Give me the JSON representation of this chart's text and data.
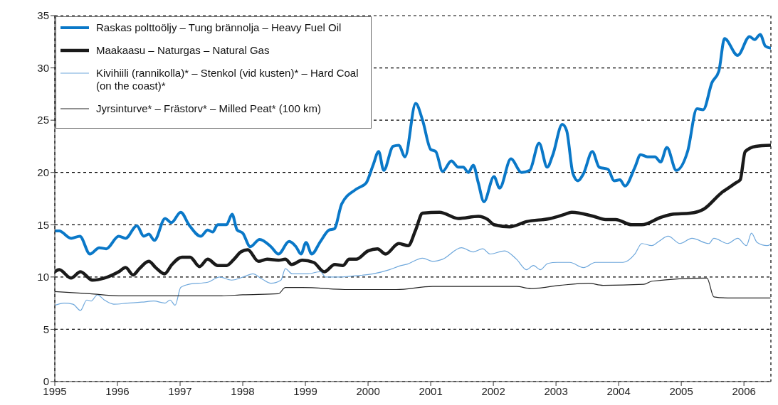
{
  "chart_data": {
    "type": "line",
    "xlim": [
      1995,
      2006.43
    ],
    "xticks": [
      1995,
      1996,
      1997,
      1998,
      1999,
      2000,
      2001,
      2002,
      2003,
      2004,
      2005,
      2006
    ],
    "ylim": [
      0,
      35
    ],
    "yticks": [
      0,
      5,
      10,
      15,
      20,
      25,
      30,
      35
    ],
    "grid": true,
    "legend": "top left",
    "line_style": "solid",
    "marker": "none",
    "series": [
      {
        "name": "Raskas polttoöljy – Tung brännolja – Heavy Fuel Oil",
        "color": "#0a78c8",
        "x": [
          1995.0,
          1995.07,
          1995.26,
          1995.4,
          1995.56,
          1995.71,
          1995.82,
          1996.02,
          1996.13,
          1996.31,
          1996.42,
          1996.5,
          1996.59,
          1996.76,
          1996.86,
          1997.01,
          1997.14,
          1997.33,
          1997.44,
          1997.52,
          1997.6,
          1997.74,
          1997.83,
          1997.91,
          1998.0,
          1998.12,
          1998.27,
          1998.45,
          1998.57,
          1998.74,
          1998.85,
          1998.93,
          1999.01,
          1999.1,
          1999.24,
          1999.38,
          1999.46,
          1999.58,
          1999.81,
          1999.97,
          2000.08,
          2000.17,
          2000.25,
          2000.4,
          2000.49,
          2000.59,
          2000.76,
          2000.87,
          2001.0,
          2001.08,
          2001.19,
          2001.33,
          2001.44,
          2001.52,
          2001.6,
          2001.68,
          2001.76,
          2001.85,
          2002.01,
          2002.1,
          2002.28,
          2002.45,
          2002.58,
          2002.73,
          2002.86,
          2002.95,
          2003.1,
          2003.17,
          2003.27,
          2003.35,
          2003.44,
          2003.58,
          2003.69,
          2003.83,
          2003.93,
          2004.02,
          2004.1,
          2004.26,
          2004.35,
          2004.46,
          2004.58,
          2004.67,
          2004.77,
          2004.92,
          2005.1,
          2005.25,
          2005.35,
          2005.49,
          2005.6,
          2005.69,
          2005.9,
          2006.09,
          2006.17,
          2006.26,
          2006.34,
          2006.42
        ],
        "values": [
          14.4,
          14.4,
          13.7,
          13.9,
          12.2,
          12.8,
          12.7,
          13.9,
          13.7,
          14.9,
          13.9,
          14.1,
          13.5,
          15.6,
          15.2,
          16.2,
          15.0,
          13.9,
          14.5,
          14.3,
          15.0,
          15.0,
          16.0,
          14.5,
          14.2,
          12.9,
          13.6,
          12.9,
          12.2,
          13.4,
          12.9,
          12.2,
          13.3,
          12.2,
          13.4,
          14.5,
          14.6,
          17.0,
          18.4,
          19.0,
          20.7,
          22.0,
          20.2,
          22.5,
          22.6,
          21.5,
          26.6,
          25.0,
          22.2,
          22.0,
          20.1,
          21.1,
          20.5,
          20.5,
          20.0,
          20.7,
          19.0,
          17.2,
          19.6,
          18.5,
          21.3,
          20.0,
          20.2,
          22.8,
          20.5,
          21.7,
          24.6,
          24.0,
          19.9,
          19.2,
          19.9,
          22.0,
          20.5,
          20.3,
          19.2,
          19.3,
          18.7,
          20.5,
          21.7,
          21.5,
          21.5,
          21.0,
          22.4,
          20.2,
          22.0,
          26.1,
          26.0,
          28.6,
          29.7,
          32.8,
          31.2,
          33.0,
          32.7,
          33.2,
          32.1,
          31.9
        ]
      },
      {
        "name": "Maakaasu – Naturgas – Natural Gas",
        "color": "#1a1a1a",
        "x": [
          1995.0,
          1995.07,
          1995.26,
          1995.41,
          1995.6,
          1995.79,
          1996.02,
          1996.13,
          1996.25,
          1996.35,
          1996.5,
          1996.61,
          1996.75,
          1996.87,
          1997.03,
          1997.16,
          1997.31,
          1997.44,
          1997.6,
          1997.74,
          1997.86,
          1997.97,
          1998.08,
          1998.25,
          1998.39,
          1998.57,
          1998.68,
          1998.78,
          1998.95,
          1999.13,
          1999.3,
          1999.47,
          1999.6,
          1999.7,
          1999.81,
          2000.0,
          2000.15,
          2000.28,
          2000.49,
          2000.64,
          2000.76,
          2000.87,
          2001.14,
          2001.44,
          2001.76,
          2001.91,
          2002.01,
          2002.26,
          2002.53,
          2002.91,
          2003.14,
          2003.25,
          2003.6,
          2003.79,
          2003.95,
          2004.21,
          2004.37,
          2004.67,
          2004.86,
          2005.14,
          2005.36,
          2005.63,
          2005.87,
          2005.94,
          2006.02,
          2006.19,
          2006.42
        ],
        "values": [
          10.5,
          10.7,
          9.9,
          10.5,
          9.7,
          9.9,
          10.5,
          10.9,
          10.2,
          10.8,
          11.5,
          10.9,
          10.3,
          11.2,
          11.9,
          11.9,
          11.0,
          11.7,
          11.1,
          11.1,
          11.7,
          12.4,
          12.6,
          11.5,
          11.7,
          11.6,
          11.7,
          11.2,
          11.6,
          11.4,
          10.5,
          11.2,
          11.1,
          11.7,
          11.7,
          12.5,
          12.7,
          12.2,
          13.2,
          13.0,
          14.5,
          16.1,
          16.2,
          15.6,
          15.8,
          15.5,
          15.0,
          14.8,
          15.3,
          15.6,
          16.0,
          16.2,
          15.8,
          15.5,
          15.5,
          15.0,
          15.0,
          15.7,
          16.0,
          16.1,
          16.5,
          18.0,
          19.0,
          19.3,
          22.0,
          22.5,
          22.6
        ]
      },
      {
        "name": "Kivihiili (rannikolla)* – Stenkol (vid kusten)* – Hard Coal (on the coast)*",
        "color": "#6fa8dc",
        "x": [
          1995.0,
          1995.15,
          1995.29,
          1995.41,
          1995.51,
          1995.58,
          1995.68,
          1995.79,
          1995.94,
          1996.16,
          1996.39,
          1996.58,
          1996.76,
          1996.84,
          1996.92,
          1997.01,
          1997.14,
          1997.44,
          1997.63,
          1997.82,
          1998.05,
          1998.16,
          1998.31,
          1998.45,
          1998.61,
          1998.68,
          1998.79,
          1999.02,
          1999.24,
          1999.32,
          1999.55,
          1999.77,
          2000.08,
          2000.34,
          2000.53,
          2000.61,
          2000.87,
          2001.03,
          2001.19,
          2001.49,
          2001.68,
          2001.83,
          2001.95,
          2002.18,
          2002.37,
          2002.53,
          2002.64,
          2002.75,
          2002.87,
          2003.02,
          2003.22,
          2003.44,
          2003.63,
          2003.91,
          2004.07,
          2004.26,
          2004.37,
          2004.53,
          2004.64,
          2004.79,
          2004.98,
          2005.17,
          2005.44,
          2005.52,
          2005.74,
          2005.9,
          2006.04,
          2006.12,
          2006.21,
          2006.37,
          2006.42
        ],
        "values": [
          7.3,
          7.5,
          7.4,
          6.8,
          7.8,
          7.7,
          8.3,
          7.8,
          7.4,
          7.5,
          7.6,
          7.7,
          7.5,
          7.8,
          7.3,
          9.0,
          9.3,
          9.5,
          10.0,
          9.7,
          10.1,
          10.3,
          9.8,
          9.4,
          9.7,
          10.8,
          10.3,
          10.3,
          10.5,
          10.0,
          10.0,
          10.1,
          10.3,
          10.7,
          11.1,
          11.2,
          11.8,
          11.5,
          11.7,
          12.8,
          12.4,
          12.7,
          12.2,
          12.5,
          11.7,
          10.7,
          11.1,
          10.7,
          11.3,
          11.4,
          11.4,
          10.9,
          11.4,
          11.4,
          11.4,
          12.2,
          13.2,
          13.0,
          13.4,
          13.9,
          13.2,
          13.7,
          13.2,
          13.7,
          13.2,
          13.7,
          13.0,
          14.2,
          13.3,
          13.0,
          13.1
        ]
      },
      {
        "name": "Jyrsinturve* – Frästorv* – Milled Peat* (100 km)",
        "color": "#222222",
        "x": [
          1995.0,
          1995.56,
          1996.02,
          1996.69,
          1997.66,
          1998.0,
          1998.57,
          1998.68,
          1998.95,
          1999.7,
          2000.45,
          2001.03,
          2002.37,
          2002.6,
          2003.06,
          2003.52,
          2003.75,
          2004.4,
          2004.53,
          2005.41,
          2005.52,
          2005.74,
          2006.42
        ],
        "values": [
          8.6,
          8.4,
          8.2,
          8.2,
          8.2,
          8.3,
          8.4,
          9.0,
          9.0,
          8.8,
          8.8,
          9.1,
          9.1,
          8.9,
          9.2,
          9.4,
          9.2,
          9.3,
          9.6,
          9.9,
          8.1,
          8.0,
          8.0
        ]
      }
    ]
  }
}
